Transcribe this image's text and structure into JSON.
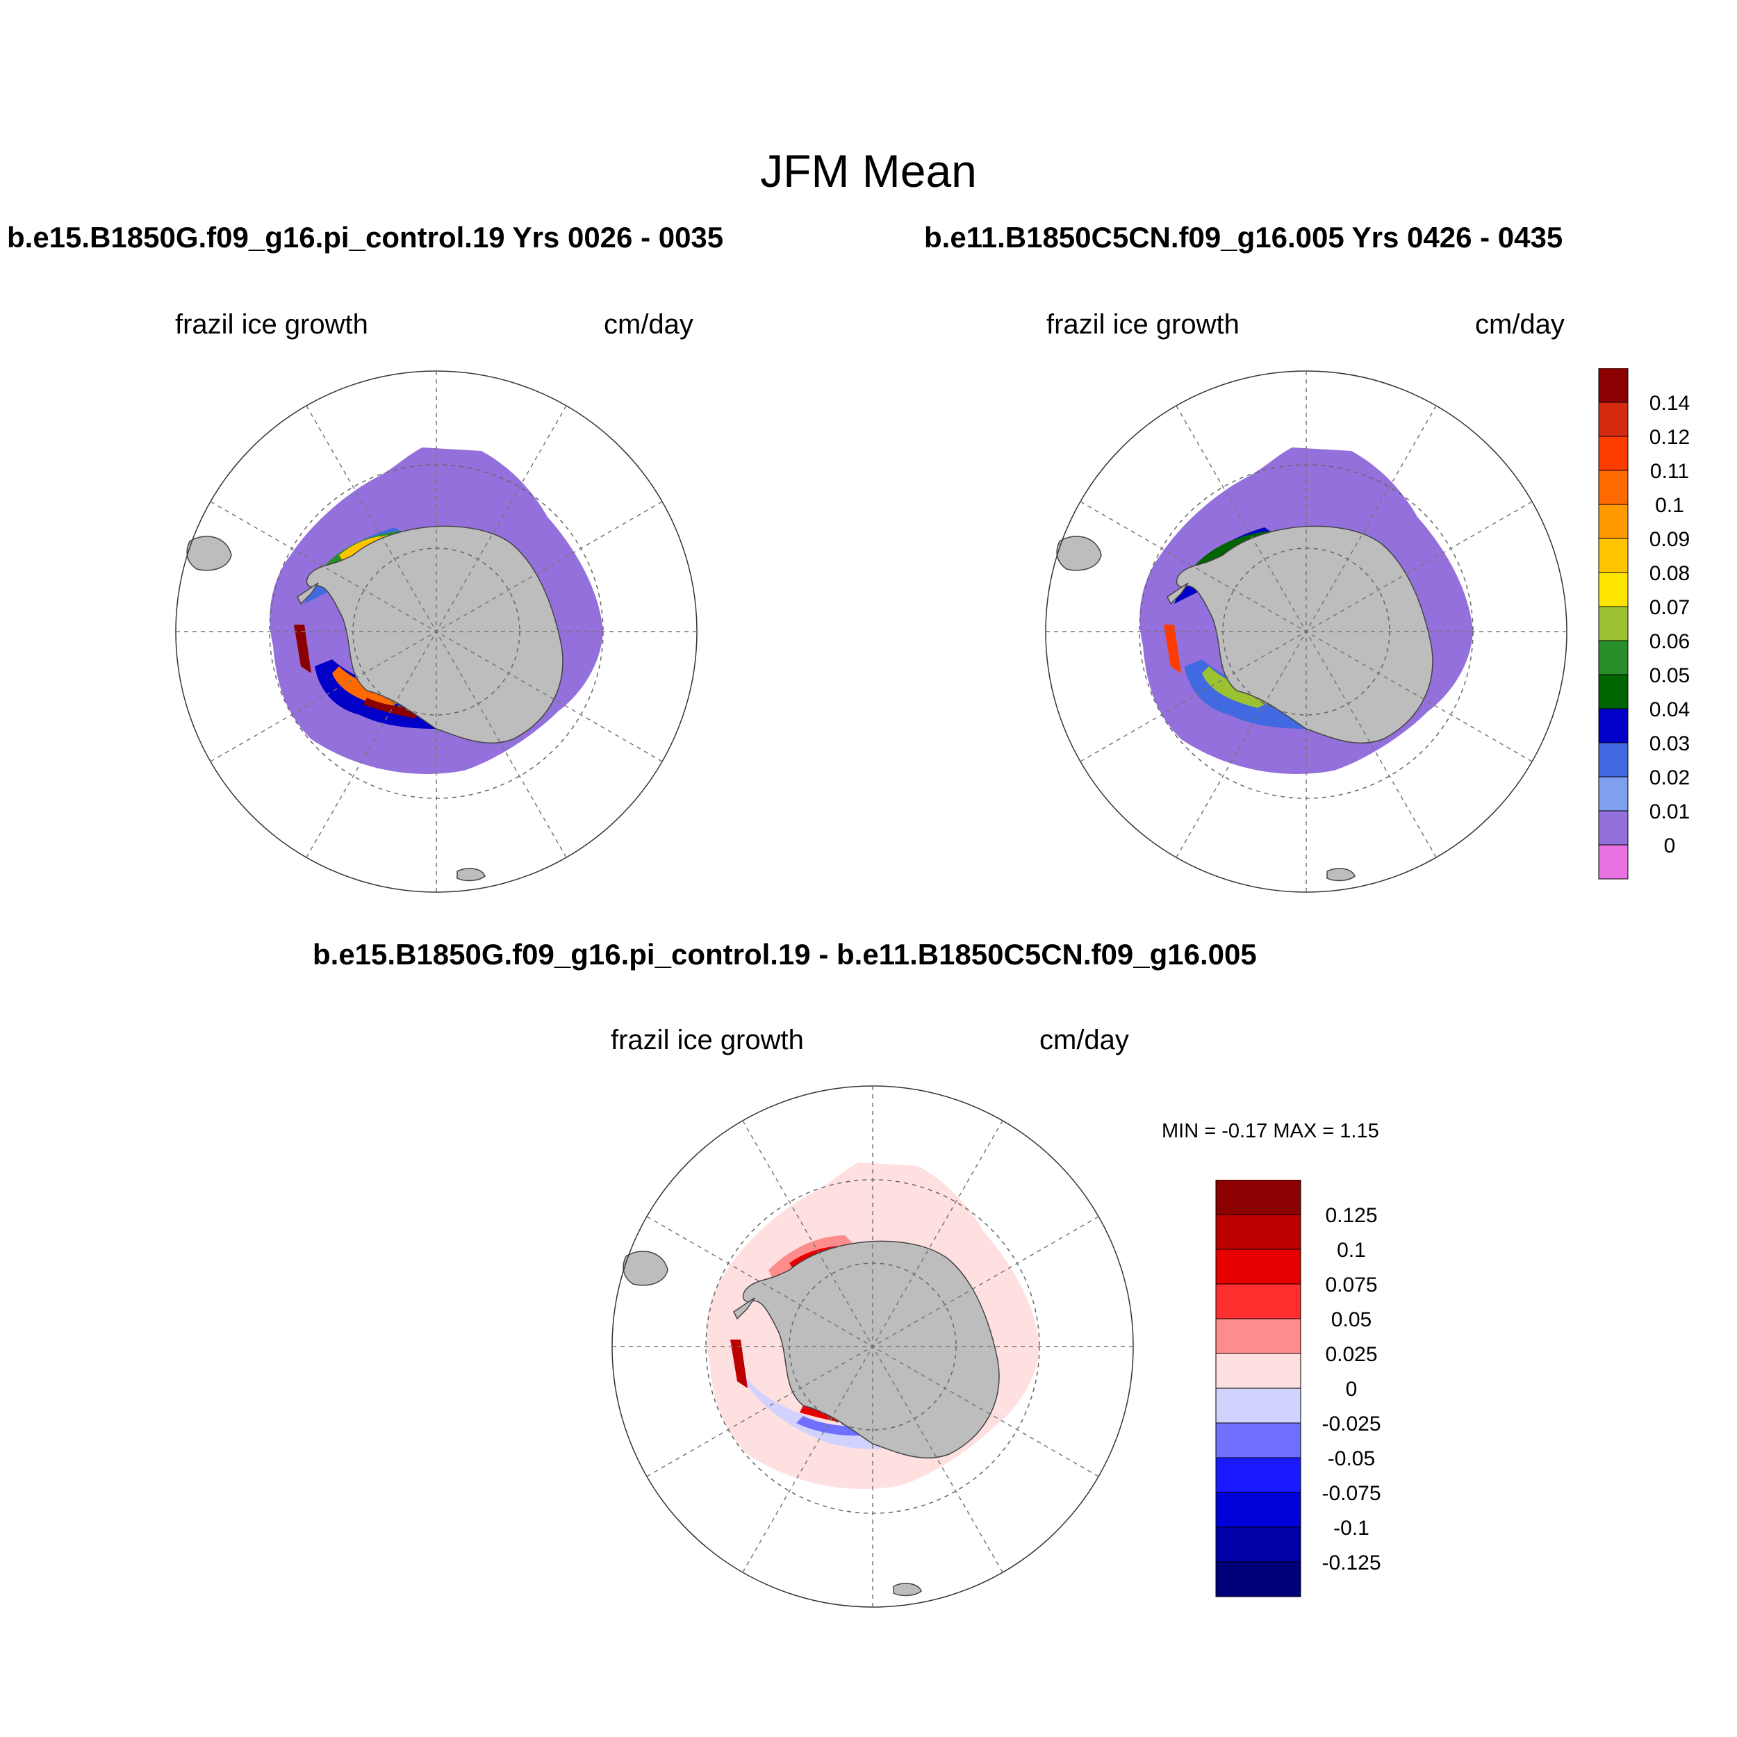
{
  "figure": {
    "title": "JFM Mean"
  },
  "panels": {
    "left": {
      "title": "b.e15.B1850G.f09_g16.pi_control.19  Yrs 0026 - 0035",
      "variable": "frazil ice growth",
      "units": "cm/day"
    },
    "right": {
      "title": "b.e11.B1850C5CN.f09_g16.005  Yrs 0426 - 0435",
      "variable": "frazil ice growth",
      "units": "cm/day"
    },
    "diff": {
      "title": "b.e15.B1850G.f09_g16.pi_control.19 - b.e11.B1850C5CN.f09_g16.005",
      "variable": "frazil ice growth",
      "units": "cm/day",
      "minmax": "MIN =  -0.17 MAX =   1.15"
    }
  },
  "colorbars": {
    "mean": {
      "labels": [
        "0.14",
        "0.12",
        "0.11",
        "0.1",
        "0.09",
        "0.08",
        "0.07",
        "0.06",
        "0.05",
        "0.04",
        "0.03",
        "0.02",
        "0.01",
        "0"
      ],
      "colors": [
        "#8b0000",
        "#d42a10",
        "#ff3c00",
        "#ff6a00",
        "#ff9a00",
        "#ffc400",
        "#ffe600",
        "#9cc232",
        "#2a8f2a",
        "#006400",
        "#0000c8",
        "#4169e1",
        "#7fa0ef",
        "#9370db",
        "#e872e0"
      ]
    },
    "diff": {
      "labels": [
        "0.125",
        "0.1",
        "0.075",
        "0.05",
        "0.025",
        "0",
        "-0.025",
        "-0.05",
        "-0.075",
        "-0.1",
        "-0.125"
      ],
      "colors": [
        "#8b0000",
        "#bc0000",
        "#e60000",
        "#ff2e2e",
        "#ff8c8c",
        "#ffe0e0",
        "#d2d2ff",
        "#7070ff",
        "#1a1aff",
        "#0000d8",
        "#0000a8",
        "#000078"
      ]
    }
  },
  "colors": {
    "land": "#bdbdbd",
    "ice_background": "#9370db",
    "diff_background": "#ffe0e0"
  }
}
